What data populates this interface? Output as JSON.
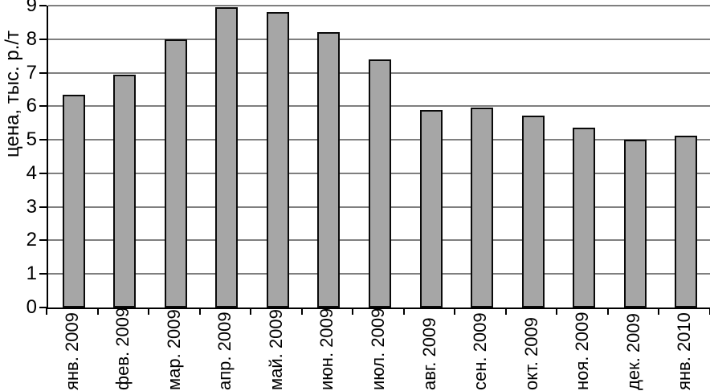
{
  "chart_data": {
    "type": "bar",
    "title": "",
    "xlabel": "",
    "ylabel": "цена, тыс. р./т",
    "categories": [
      "янв. 2009",
      "фев. 2009",
      "мар. 2009",
      "апр. 2009",
      "май. 2009",
      "июн. 2009",
      "июл. 2009",
      "авг. 2009",
      "сен. 2009",
      "окт. 2009",
      "ноя. 2009",
      "дек. 2009",
      "янв. 2010"
    ],
    "values": [
      6.35,
      6.95,
      8.0,
      8.95,
      8.8,
      8.2,
      7.4,
      5.9,
      5.95,
      5.72,
      5.35,
      5.0,
      5.13
    ],
    "ylim": [
      0,
      9
    ],
    "yticks": [
      0,
      1,
      2,
      3,
      4,
      5,
      6,
      7,
      8,
      9
    ],
    "grid": true,
    "legend": "none",
    "bar_color": "#a6a6a6",
    "bar_border_color": "#0a0a0a",
    "gridline_color": "#7f7f7f",
    "axis_color": "#000000"
  }
}
